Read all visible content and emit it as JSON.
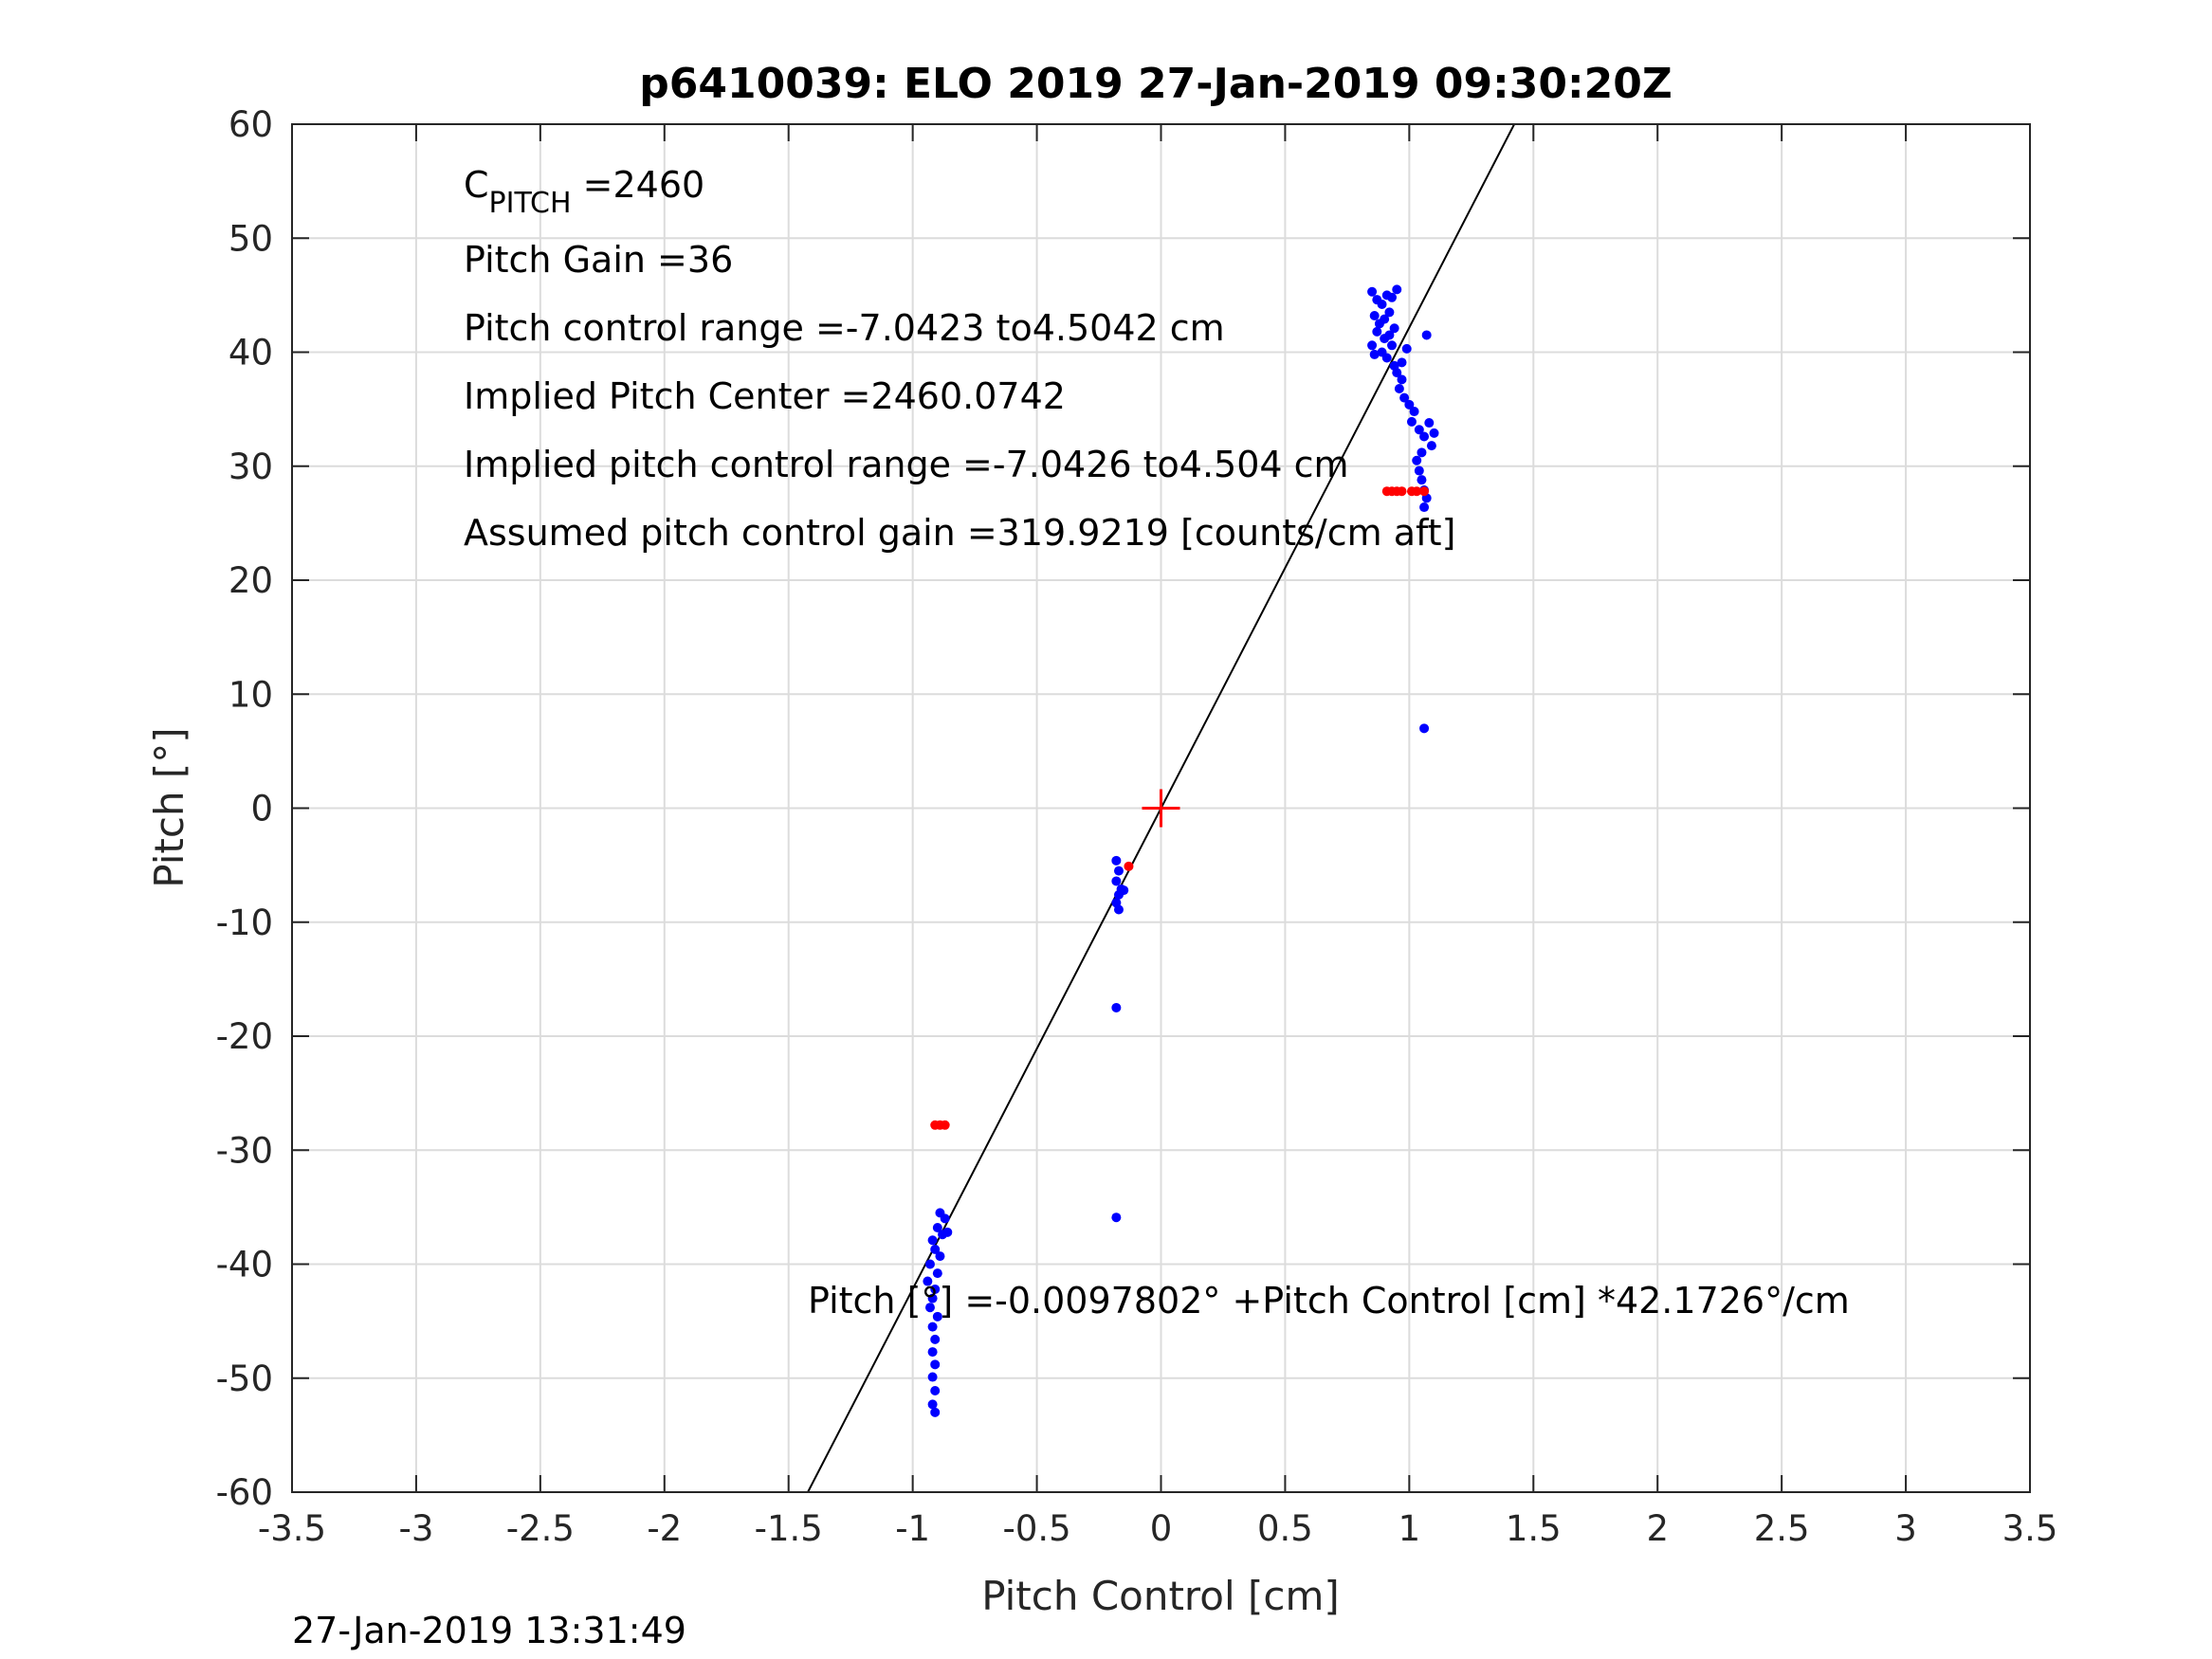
{
  "chart_data": {
    "type": "scatter",
    "title": "p6410039: ELO 2019 27-Jan-2019 09:30:20Z",
    "xlabel": "Pitch Control [cm]",
    "ylabel": "Pitch [°]",
    "xlim": [
      -3.5,
      3.5
    ],
    "ylim": [
      -60,
      60
    ],
    "xticks": [
      -3.5,
      -3,
      -2.5,
      -2,
      -1.5,
      -1,
      -0.5,
      0,
      0.5,
      1,
      1.5,
      2,
      2.5,
      3,
      3.5
    ],
    "xtick_labels": [
      "-3.5",
      "-3",
      "-2.5",
      "-2",
      "-1.5",
      "-1",
      "-0.5",
      "0",
      "0.5",
      "1",
      "1.5",
      "2",
      "2.5",
      "3",
      "3.5"
    ],
    "yticks": [
      -60,
      -50,
      -40,
      -30,
      -20,
      -10,
      0,
      10,
      20,
      30,
      40,
      50,
      60
    ],
    "ytick_labels": [
      "-60",
      "-50",
      "-40",
      "-30",
      "-20",
      "-10",
      "0",
      "10",
      "20",
      "30",
      "40",
      "50",
      "60"
    ],
    "grid": true,
    "annotations": {
      "c_pitch_main": "C",
      "c_pitch_sub": "PITCH",
      "c_pitch_value": " =2460",
      "pitch_gain": "Pitch Gain =36",
      "pitch_control_range": "Pitch control range =-7.0423 to4.5042 cm",
      "implied_center": "Implied Pitch Center =2460.0742",
      "implied_range": "Implied pitch control range =-7.0426 to4.504 cm",
      "assumed_gain": "Assumed pitch control gain =319.9219 [counts/cm aft]",
      "fit_equation": "Pitch [°] =-0.0097802° +Pitch Control [cm] *42.1726°/cm"
    },
    "fit_line": {
      "intercept": -0.0097802,
      "slope": 42.1726,
      "color": "#000000"
    },
    "center_marker": {
      "x": 0,
      "y": 0,
      "color": "#ff0000"
    },
    "series": [
      {
        "color": "#0000ff",
        "points": [
          [
            0.85,
            45.3
          ],
          [
            0.87,
            44.6
          ],
          [
            0.89,
            44.2
          ],
          [
            0.91,
            45.0
          ],
          [
            0.93,
            44.8
          ],
          [
            0.95,
            45.5
          ],
          [
            0.92,
            43.5
          ],
          [
            0.9,
            42.9
          ],
          [
            0.86,
            43.2
          ],
          [
            0.88,
            42.5
          ],
          [
            0.94,
            42.1
          ],
          [
            0.92,
            41.5
          ],
          [
            0.9,
            41.2
          ],
          [
            0.93,
            40.6
          ],
          [
            0.89,
            40.0
          ],
          [
            0.91,
            39.5
          ],
          [
            0.94,
            38.8
          ],
          [
            0.95,
            38.2
          ],
          [
            0.97,
            37.6
          ],
          [
            0.96,
            36.8
          ],
          [
            0.98,
            36.0
          ],
          [
            1.0,
            35.4
          ],
          [
            1.02,
            34.8
          ],
          [
            1.01,
            33.9
          ],
          [
            1.04,
            33.2
          ],
          [
            1.06,
            32.6
          ],
          [
            1.08,
            33.8
          ],
          [
            1.1,
            32.9
          ],
          [
            1.09,
            31.8
          ],
          [
            1.05,
            31.2
          ],
          [
            1.03,
            30.5
          ],
          [
            1.04,
            29.6
          ],
          [
            1.05,
            28.8
          ],
          [
            1.06,
            27.9
          ],
          [
            1.07,
            27.2
          ],
          [
            1.06,
            26.4
          ],
          [
            1.07,
            41.5
          ],
          [
            0.85,
            40.6
          ],
          [
            0.86,
            39.8
          ],
          [
            0.87,
            41.8
          ],
          [
            0.99,
            40.3
          ],
          [
            0.97,
            39.1
          ],
          [
            1.06,
            7.0
          ],
          [
            -0.18,
            -4.6
          ],
          [
            -0.17,
            -5.5
          ],
          [
            -0.18,
            -6.4
          ],
          [
            -0.16,
            -7.1
          ],
          [
            -0.17,
            -7.6
          ],
          [
            -0.18,
            -8.3
          ],
          [
            -0.17,
            -8.9
          ],
          [
            -0.15,
            -7.2
          ],
          [
            -0.18,
            -17.5
          ],
          [
            -0.18,
            -35.9
          ],
          [
            -0.89,
            -35.5
          ],
          [
            -0.87,
            -36.0
          ],
          [
            -0.9,
            -36.8
          ],
          [
            -0.88,
            -37.4
          ],
          [
            -0.92,
            -37.9
          ],
          [
            -0.86,
            -37.2
          ],
          [
            -0.91,
            -38.7
          ],
          [
            -0.89,
            -39.3
          ],
          [
            -0.93,
            -40.0
          ],
          [
            -0.9,
            -40.8
          ],
          [
            -0.94,
            -41.5
          ],
          [
            -0.91,
            -42.2
          ],
          [
            -0.92,
            -43.0
          ],
          [
            -0.93,
            -43.8
          ],
          [
            -0.9,
            -44.6
          ],
          [
            -0.92,
            -45.5
          ],
          [
            -0.91,
            -46.6
          ],
          [
            -0.92,
            -47.7
          ],
          [
            -0.91,
            -48.8
          ],
          [
            -0.92,
            -49.9
          ],
          [
            -0.91,
            -51.1
          ],
          [
            -0.92,
            -52.3
          ],
          [
            -0.91,
            -53.0
          ]
        ]
      },
      {
        "color": "#ff0000",
        "points": [
          [
            0.91,
            27.8
          ],
          [
            0.93,
            27.8
          ],
          [
            0.95,
            27.8
          ],
          [
            0.97,
            27.8
          ],
          [
            1.01,
            27.8
          ],
          [
            1.03,
            27.8
          ],
          [
            1.06,
            27.8
          ],
          [
            -0.13,
            -5.1
          ],
          [
            -0.91,
            -27.8
          ],
          [
            -0.89,
            -27.8
          ],
          [
            -0.87,
            -27.8
          ]
        ]
      }
    ]
  },
  "footer": {
    "timestamp": "27-Jan-2019 13:31:49"
  }
}
